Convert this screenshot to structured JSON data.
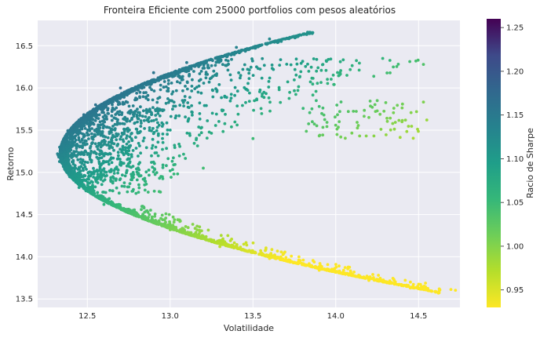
{
  "chart_data": {
    "type": "scatter",
    "title": "Fronteira Eficiente com 25000 portfolios com pesos aleatórios",
    "xlabel": "Volatilidade",
    "ylabel": "Retorno",
    "xlim": [
      12.2,
      14.75
    ],
    "ylim": [
      13.4,
      16.8
    ],
    "xticks": [
      "12.5",
      "13.0",
      "13.5",
      "14.0",
      "14.5"
    ],
    "yticks": [
      "13.5",
      "14.0",
      "14.5",
      "15.0",
      "15.5",
      "16.0",
      "16.5"
    ],
    "grid": true,
    "colorbar": {
      "label": "Racio de Sharpe",
      "range": [
        0.93,
        1.26
      ],
      "ticks": [
        "0.95",
        "1.00",
        "1.05",
        "1.10",
        "1.15",
        "1.20",
        "1.25"
      ],
      "colormap": "viridis"
    },
    "frontier": {
      "min_volatility": 12.32,
      "return_at_min_volatility": 15.22,
      "upper_end": {
        "volatility": 13.83,
        "return": 16.66
      },
      "lower_end": {
        "volatility": 14.62,
        "return": 13.57
      }
    },
    "points": [
      {
        "x": 12.32,
        "y": 15.22
      },
      {
        "x": 12.45,
        "y": 15.62
      },
      {
        "x": 12.55,
        "y": 15.8
      },
      {
        "x": 12.7,
        "y": 16.0
      },
      {
        "x": 12.9,
        "y": 16.18
      },
      {
        "x": 13.1,
        "y": 16.3
      },
      {
        "x": 13.4,
        "y": 16.48
      },
      {
        "x": 13.6,
        "y": 16.58
      },
      {
        "x": 13.83,
        "y": 16.66
      },
      {
        "x": 12.45,
        "y": 14.82
      },
      {
        "x": 12.6,
        "y": 14.62
      },
      {
        "x": 12.8,
        "y": 14.48
      },
      {
        "x": 13.0,
        "y": 14.32
      },
      {
        "x": 13.3,
        "y": 14.12
      },
      {
        "x": 13.6,
        "y": 13.98
      },
      {
        "x": 13.9,
        "y": 13.84
      },
      {
        "x": 14.2,
        "y": 13.72
      },
      {
        "x": 14.45,
        "y": 13.63
      },
      {
        "x": 14.62,
        "y": 13.57
      },
      {
        "x": 13.9,
        "y": 15.78
      },
      {
        "x": 14.2,
        "y": 15.65
      },
      {
        "x": 14.4,
        "y": 15.6
      },
      {
        "x": 14.55,
        "y": 15.62
      },
      {
        "x": 13.5,
        "y": 15.4
      },
      {
        "x": 13.2,
        "y": 15.05
      },
      {
        "x": 13.0,
        "y": 15.5
      }
    ]
  }
}
